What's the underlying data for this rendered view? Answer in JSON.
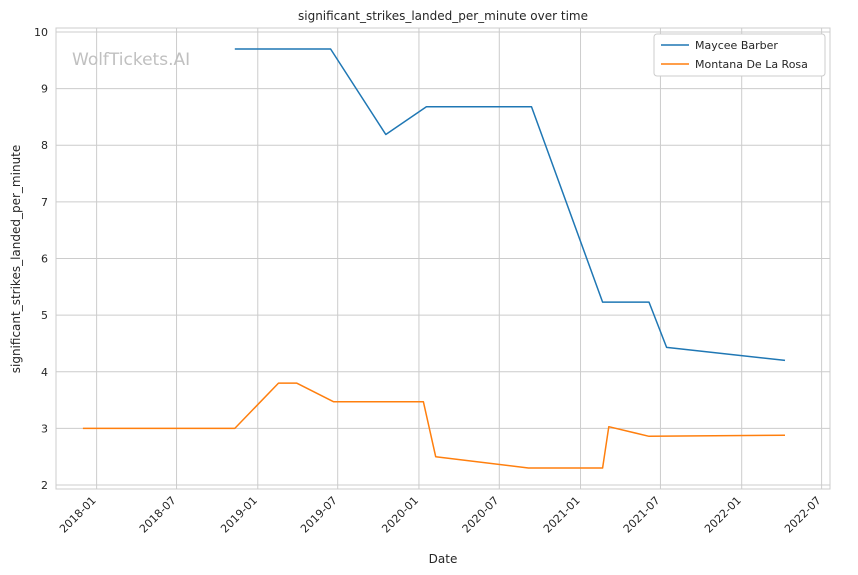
{
  "chart_data": {
    "type": "line",
    "title": "significant_strikes_landed_per_minute over time",
    "xlabel": "Date",
    "ylabel": "significant_strikes_landed_per_minute",
    "watermark": "WolfTickets.AI",
    "xlim": [
      "2017-10-01",
      "2022-07-20"
    ],
    "ylim": [
      1.93,
      10.07
    ],
    "x_ticks": [
      "2018-01",
      "2018-07",
      "2019-01",
      "2019-07",
      "2020-01",
      "2020-07",
      "2021-01",
      "2021-07",
      "2022-01",
      "2022-07"
    ],
    "y_ticks": [
      2,
      3,
      4,
      5,
      6,
      7,
      8,
      9,
      10
    ],
    "grid": true,
    "legend_position": "top-right",
    "series": [
      {
        "name": "Maycee Barber",
        "color": "#1f77b4",
        "points": [
          [
            "2018-11-10",
            9.7
          ],
          [
            "2019-06-15",
            9.7
          ],
          [
            "2019-10-18",
            8.19
          ],
          [
            "2020-01-18",
            8.68
          ],
          [
            "2020-09-12",
            8.68
          ],
          [
            "2021-02-20",
            5.23
          ],
          [
            "2021-06-05",
            5.23
          ],
          [
            "2021-07-15",
            4.43
          ],
          [
            "2022-04-09",
            4.2
          ]
        ]
      },
      {
        "name": "Montana De La Rosa",
        "color": "#ff7f0e",
        "points": [
          [
            "2017-12-01",
            3.0
          ],
          [
            "2018-11-10",
            3.0
          ],
          [
            "2019-02-17",
            3.8
          ],
          [
            "2019-03-30",
            3.8
          ],
          [
            "2019-06-22",
            3.47
          ],
          [
            "2020-01-11",
            3.47
          ],
          [
            "2020-02-08",
            2.5
          ],
          [
            "2020-09-05",
            2.3
          ],
          [
            "2021-02-20",
            2.3
          ],
          [
            "2021-03-06",
            3.03
          ],
          [
            "2021-06-05",
            2.86
          ],
          [
            "2022-04-09",
            2.88
          ]
        ]
      }
    ]
  }
}
